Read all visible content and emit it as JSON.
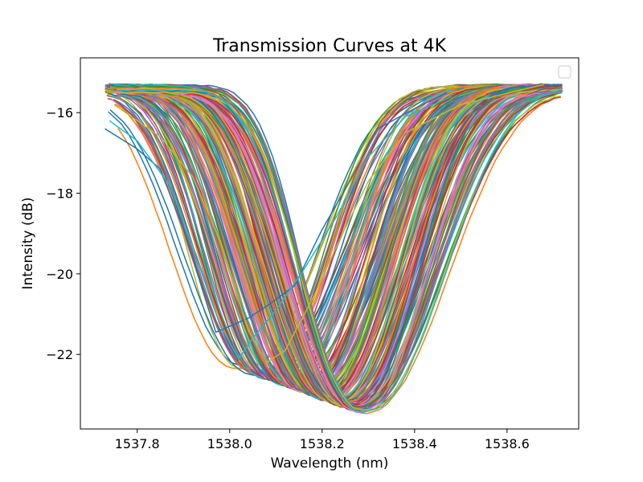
{
  "chart_data": {
    "type": "line",
    "title": "Transmission Curves at 4K",
    "xlabel": "Wavelength (nm)",
    "ylabel": "Intensity (dB)",
    "xlim": [
      1537.677,
      1538.755
    ],
    "ylim": [
      -23.85,
      -14.64
    ],
    "x_ticks": [
      1537.8,
      1538.0,
      1538.2,
      1538.4,
      1538.6
    ],
    "x_tick_labels": [
      "1537.8",
      "1538.0",
      "1538.2",
      "1538.4",
      "1538.6"
    ],
    "y_ticks": [
      -22,
      -20,
      -18,
      -16
    ],
    "y_tick_labels": [
      "−22",
      "−20",
      "−18",
      "−16"
    ],
    "grid": false,
    "legend": {
      "position": "upper right",
      "entries": []
    },
    "color_cycle": [
      "#1f77b4",
      "#ff7f0e",
      "#2ca02c",
      "#d62728",
      "#9467bd",
      "#8c564b",
      "#e377c2",
      "#7f7f7f",
      "#bcbd22",
      "#17becf"
    ],
    "family": {
      "count": 200,
      "x_start_range": [
        1537.73,
        1537.76
      ],
      "x_end_range": [
        1538.71,
        1538.72
      ],
      "min_wavelength_range": [
        1538.02,
        1538.29
      ],
      "min_intensity_range": [
        -22.3,
        -23.4
      ],
      "baseline_intensity": -15.4
    },
    "series": [
      {
        "color": "#1f77b4",
        "x": [
          1537.73,
          1537.8,
          1537.85,
          1537.9,
          1537.97,
          1538.04,
          1538.08,
          1538.14,
          1538.2,
          1538.26,
          1538.32,
          1538.4,
          1538.47
        ],
        "y": [
          -16.4,
          -16.9,
          -17.4,
          -18.9,
          -21.45,
          -21.1,
          -20.8,
          -20.3,
          -18.9,
          -17.7,
          -16.4,
          -15.9,
          -15.5
        ]
      },
      {
        "color": "#17becf",
        "x": [
          1537.74,
          1537.8,
          1537.87,
          1537.93,
          1537.98,
          1538.02,
          1538.05,
          1538.1,
          1538.16,
          1538.23,
          1538.3,
          1538.38,
          1538.48
        ],
        "y": [
          -16.2,
          -16.7,
          -17.8,
          -19.6,
          -21.3,
          -22.1,
          -21.6,
          -20.9,
          -19.9,
          -18.6,
          -17.1,
          -16.1,
          -15.6
        ]
      },
      {
        "color": "#bcbd22",
        "x": [
          1537.75,
          1537.85,
          1537.92,
          1537.98,
          1538.04,
          1538.08,
          1538.12,
          1538.18,
          1538.24,
          1538.3,
          1538.38,
          1538.5,
          1538.68
        ],
        "y": [
          -15.8,
          -16.6,
          -17.6,
          -19.2,
          -21.4,
          -22.2,
          -21.9,
          -20.6,
          -19.1,
          -17.7,
          -16.5,
          -15.8,
          -15.3
        ]
      }
    ]
  }
}
